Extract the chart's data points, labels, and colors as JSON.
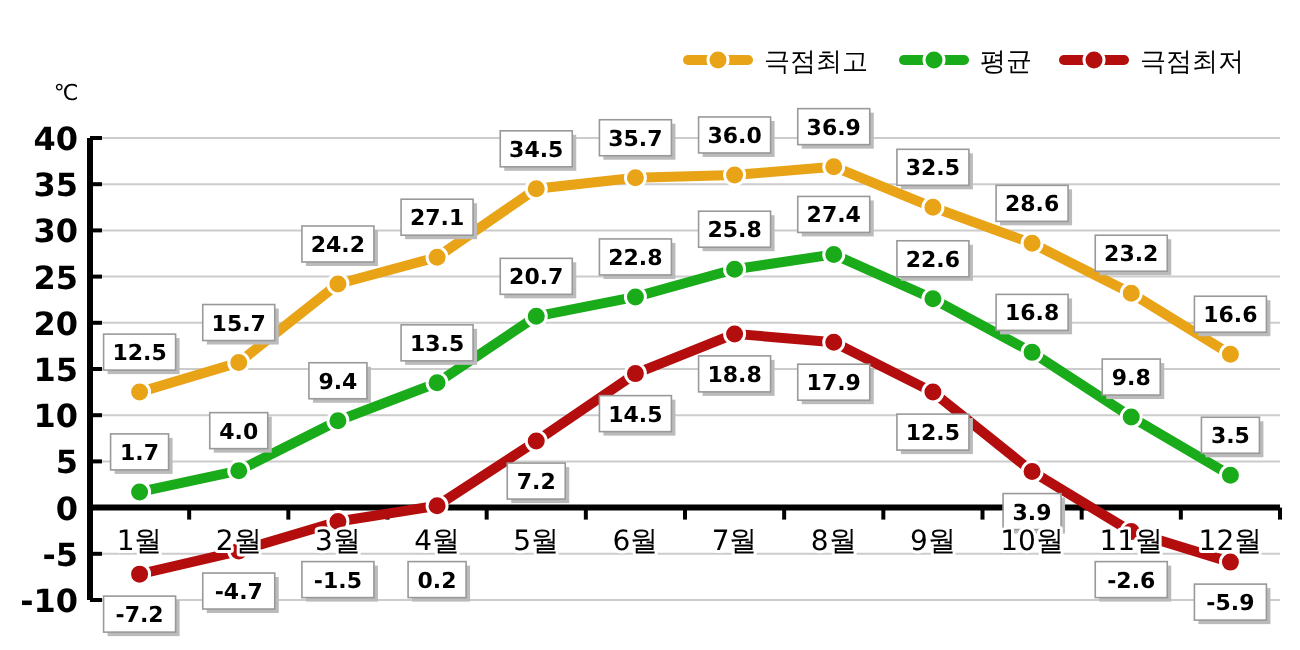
{
  "chart_data": {
    "type": "line",
    "ylabel": "℃",
    "categories": [
      "1월",
      "2월",
      "3월",
      "4월",
      "5월",
      "6월",
      "7월",
      "8월",
      "9월",
      "10월",
      "11월",
      "12월"
    ],
    "series": [
      {
        "name": "극점최고",
        "color": "#e8a317",
        "values": [
          12.5,
          15.7,
          24.2,
          27.1,
          34.5,
          35.7,
          36.0,
          36.9,
          32.5,
          28.6,
          23.2,
          16.6
        ],
        "value_labels": [
          "12.5",
          "15.7",
          "24.2",
          "27.1",
          "34.5",
          "35.7",
          "36.0",
          "36.9",
          "32.5",
          "28.6",
          "23.2",
          "16.6"
        ]
      },
      {
        "name": "평균",
        "color": "#1aab1a",
        "values": [
          1.7,
          4.0,
          9.4,
          13.5,
          20.7,
          22.8,
          25.8,
          27.4,
          22.6,
          16.8,
          9.8,
          3.5
        ],
        "value_labels": [
          "1.7",
          "4.0",
          "9.4",
          "13.5",
          "20.7",
          "22.8",
          "25.8",
          "27.4",
          "22.6",
          "16.8",
          "9.8",
          "3.5"
        ]
      },
      {
        "name": "극점최저",
        "color": "#b30d0d",
        "values": [
          -7.2,
          -4.7,
          -1.5,
          0.2,
          7.2,
          14.5,
          18.8,
          17.9,
          12.5,
          3.9,
          -2.6,
          -5.9
        ],
        "value_labels": [
          "-7.2",
          "-4.7",
          "-1.5",
          "0.2",
          "7.2",
          "14.5",
          "18.8",
          "17.9",
          "12.5",
          "3.9",
          "-2.6",
          "-5.9"
        ]
      }
    ],
    "ylim": [
      -10,
      40
    ],
    "yticks": [
      -10,
      -5,
      0,
      5,
      10,
      15,
      20,
      25,
      30,
      35,
      40
    ],
    "grid": "y",
    "legend": "top right",
    "marker": "circle",
    "line_style": "solid"
  }
}
